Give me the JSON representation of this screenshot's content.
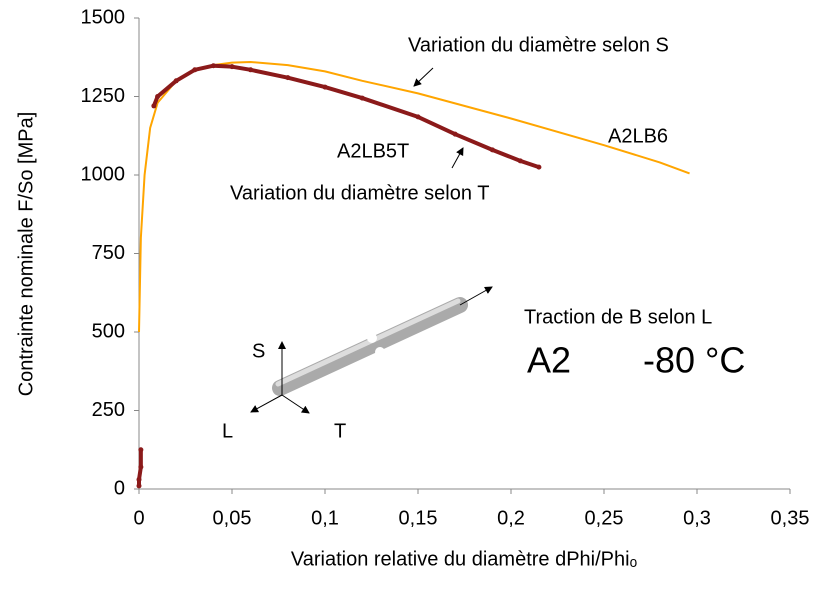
{
  "chart_data": {
    "type": "line",
    "x_label": "Variation relative du diamètre dPhi/Phiₒ",
    "y_label": "Contrainte nominale F/So [MPa]",
    "xlim": [
      0,
      0.35
    ],
    "xticks": [
      0,
      {
        "value": 0.05,
        "label": "0,05"
      },
      {
        "value": 0.1,
        "label": "0,1"
      },
      {
        "value": 0.15,
        "label": "0,15"
      },
      {
        "value": 0.2,
        "label": "0,2"
      },
      {
        "value": 0.25,
        "label": "0,25"
      },
      {
        "value": 0.3,
        "label": "0,3"
      },
      {
        "value": 0.35,
        "label": "0,35"
      }
    ],
    "ylim": [
      0,
      1500
    ],
    "yticks": [
      0,
      250,
      500,
      750,
      1000,
      1250,
      1500
    ],
    "series": [
      {
        "name": "A2LB6",
        "color": "#ffa500",
        "markers": false,
        "x": [
          0,
          0.001,
          0.003,
          0.006,
          0.01,
          0.02,
          0.03,
          0.04,
          0.05,
          0.06,
          0.08,
          0.1,
          0.12,
          0.15,
          0.2,
          0.25,
          0.28,
          0.296
        ],
        "values": [
          500,
          800,
          1000,
          1150,
          1230,
          1300,
          1335,
          1350,
          1358,
          1360,
          1350,
          1330,
          1300,
          1260,
          1180,
          1095,
          1040,
          1005
        ]
      },
      {
        "name": "A2LB5T",
        "color": "#8b1a1a",
        "markers": true,
        "x": [
          0,
          0,
          0.001,
          0.001,
          null,
          0.008,
          0.01,
          0.02,
          0.03,
          0.04,
          0.05,
          0.06,
          0.08,
          0.1,
          0.12,
          0.15,
          0.17,
          0.19,
          0.205,
          0.215
        ],
        "values": [
          10,
          30,
          70,
          125,
          null,
          1220,
          1250,
          1300,
          1335,
          1348,
          1345,
          1335,
          1310,
          1280,
          1245,
          1185,
          1130,
          1080,
          1045,
          1025
        ]
      }
    ],
    "annotations": [
      "Variation du diamètre selon S",
      "A2LB6",
      "A2LB5T",
      "Variation du diamètre selon T",
      "Traction de B selon L",
      "A2",
      "-80 °C",
      "S",
      "L",
      "T"
    ]
  }
}
